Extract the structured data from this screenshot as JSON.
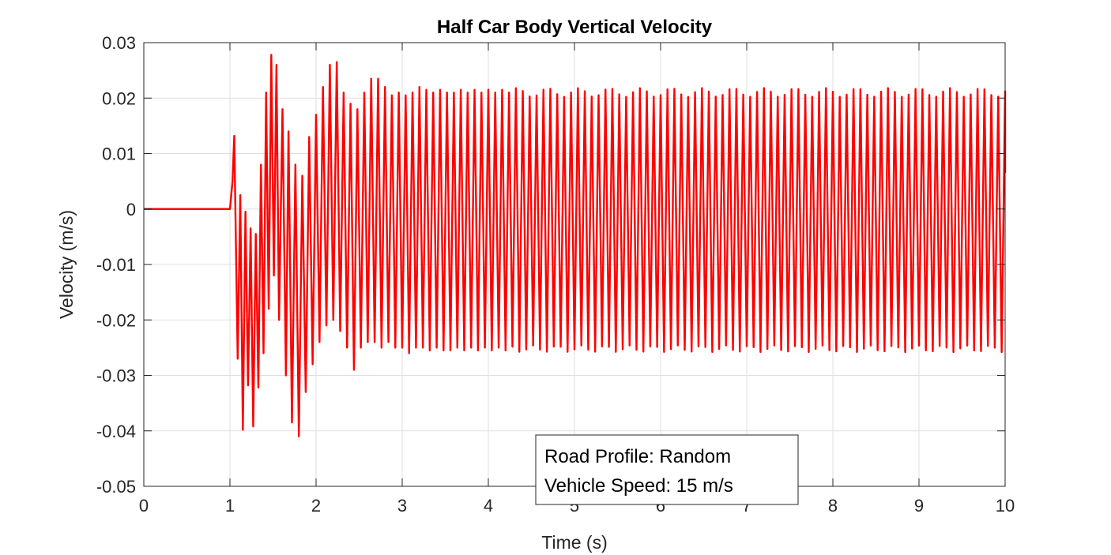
{
  "chart_data": {
    "type": "line",
    "title": "Half Car Body Vertical Velocity",
    "xlabel": "Time (s)",
    "ylabel": "Velocity (m/s)",
    "xlim": [
      0,
      10
    ],
    "ylim": [
      -0.05,
      0.03
    ],
    "xticks": [
      0,
      1,
      2,
      3,
      4,
      5,
      6,
      7,
      8,
      9,
      10
    ],
    "yticks": [
      -0.05,
      -0.04,
      -0.03,
      -0.02,
      -0.01,
      0,
      0.01,
      0.02,
      0.03
    ],
    "xtick_labels": [
      "0",
      "1",
      "2",
      "3",
      "4",
      "5",
      "6",
      "7",
      "8",
      "9",
      "10"
    ],
    "ytick_labels": [
      "-0.05",
      "-0.04",
      "-0.03",
      "-0.02",
      "-0.01",
      "0",
      "0.01",
      "0.02",
      "0.03"
    ],
    "grid": true,
    "series_color": "#ff0000",
    "annotation": [
      "Road Profile: Random",
      "Vehicle Speed: 15 m/s"
    ],
    "series": [
      {
        "x": [
          0,
          1.0,
          1.03,
          1.05,
          1.09,
          1.12,
          1.15,
          1.18,
          1.21,
          1.24,
          1.27,
          1.3,
          1.33,
          1.36,
          1.39,
          1.42,
          1.45,
          1.48,
          1.51,
          1.54,
          1.57,
          1.61,
          1.65,
          1.68,
          1.72,
          1.76,
          1.8,
          1.84,
          1.88,
          1.92,
          1.96,
          2.0,
          2.04,
          2.08,
          2.12,
          2.16,
          2.2,
          2.24,
          2.28,
          2.32,
          2.36,
          2.4,
          2.44,
          2.48,
          2.52,
          2.56,
          2.6,
          2.64,
          2.68,
          2.72,
          2.76,
          2.8,
          2.84,
          2.88,
          2.92,
          2.96,
          3.0,
          3.04,
          3.08,
          3.12,
          3.16,
          3.2,
          3.24,
          3.28,
          3.32,
          3.36,
          3.4,
          3.44,
          3.48,
          3.52,
          3.56,
          3.6,
          3.64,
          3.68,
          3.72,
          3.76,
          3.8,
          3.84,
          3.88,
          3.92,
          3.96,
          4.0,
          4.04,
          4.08,
          4.12,
          4.16,
          4.2
        ],
        "y": [
          0,
          0,
          0.005,
          0.0132,
          -0.027,
          0.0025,
          -0.0398,
          -0.0005,
          -0.0318,
          -0.0035,
          -0.0392,
          -0.0045,
          -0.0322,
          0.008,
          -0.026,
          0.021,
          -0.018,
          0.0278,
          -0.012,
          0.026,
          -0.02,
          0.018,
          -0.03,
          0.014,
          -0.0385,
          0.008,
          -0.041,
          0.006,
          -0.033,
          0.013,
          -0.028,
          0.017,
          -0.024,
          0.022,
          -0.021,
          0.026,
          -0.02,
          0.0265,
          -0.022,
          0.021,
          -0.025,
          0.019,
          -0.029,
          0.018,
          -0.025,
          0.021,
          -0.024,
          0.0235,
          -0.024,
          0.0235,
          -0.025,
          0.022,
          -0.024,
          0.0205,
          -0.025,
          0.021,
          -0.025,
          0.0205,
          -0.026,
          0.021,
          -0.025,
          0.022,
          -0.025,
          0.0215,
          -0.0255,
          0.021,
          -0.025,
          0.0215,
          -0.0255,
          0.021,
          -0.0255,
          0.021,
          -0.025,
          0.0215,
          -0.0255,
          0.021,
          -0.025,
          0.0215,
          -0.0255,
          0.021,
          -0.025,
          0.0215,
          -0.0255,
          0.021,
          -0.025,
          0.0215,
          -0.0255
        ]
      }
    ]
  }
}
